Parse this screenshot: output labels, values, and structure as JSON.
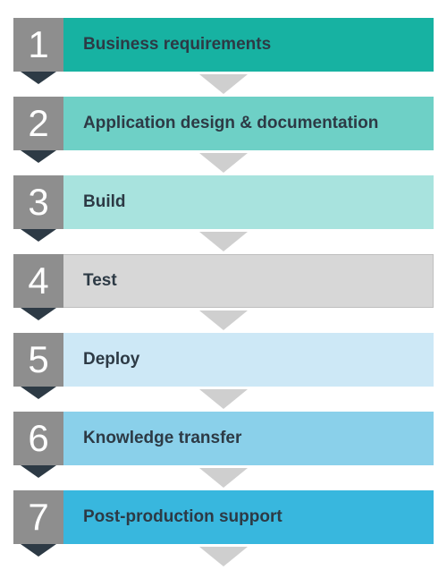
{
  "diagram": {
    "type": "flowchart",
    "direction": "vertical",
    "background_color": "#ffffff",
    "num_box": {
      "bg": "#8e8e8e",
      "text_color": "#ffffff",
      "arrow_color": "#2d3a45",
      "font_size": 42,
      "font_weight": 300
    },
    "label": {
      "text_color": "#2d3a45",
      "font_size": 19,
      "font_weight": 700
    },
    "connector_color": "#cfcfcf",
    "steps": [
      {
        "num": "1",
        "label": "Business requirements",
        "bar_bg": "#17b2a2"
      },
      {
        "num": "2",
        "label": "Application design & documentation",
        "bar_bg": "#6ed0c6"
      },
      {
        "num": "3",
        "label": "Build",
        "bar_bg": "#a8e3de"
      },
      {
        "num": "4",
        "label": "Test",
        "bar_bg": "#d7d7d7"
      },
      {
        "num": "5",
        "label": "Deploy",
        "bar_bg": "#cde8f6"
      },
      {
        "num": "6",
        "label": "Knowledge transfer",
        "bar_bg": "#8ad0ea"
      },
      {
        "num": "7",
        "label": "Post-production support",
        "bar_bg": "#38b7de"
      }
    ]
  }
}
